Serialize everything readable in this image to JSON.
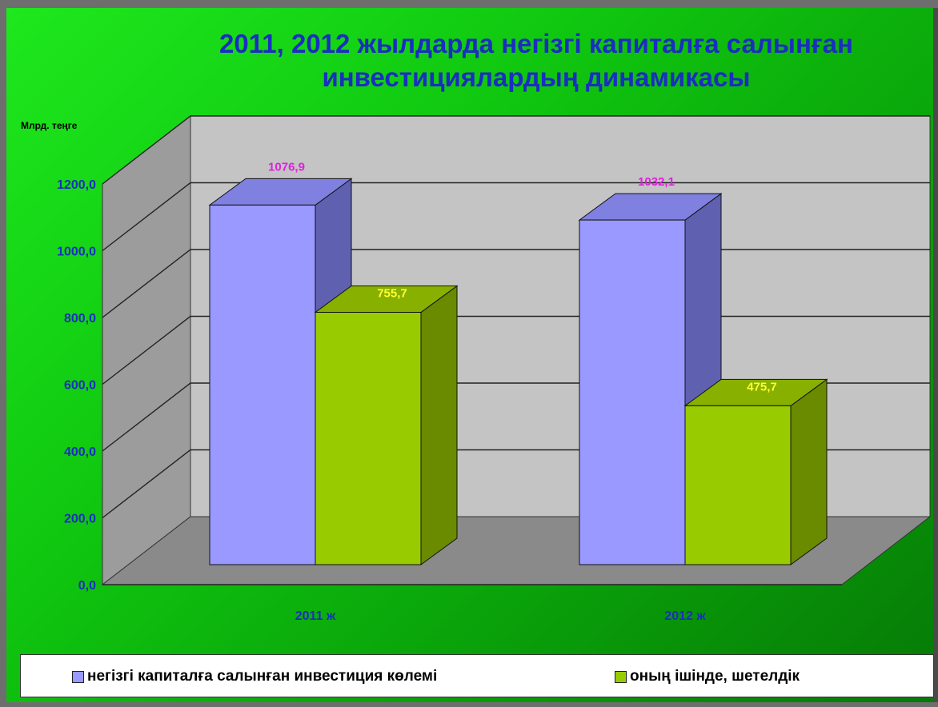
{
  "chart_data": {
    "type": "bar",
    "title": "2011, 2012 жылдарда негізгі капиталға салынған\nинвестициялардың динамикасы",
    "ylabel": "Млрд. теңге",
    "categories": [
      "2011 ж",
      "2012 ж"
    ],
    "series": [
      {
        "name": "негізгі капиталға салынған инвестиция көлемі",
        "values": [
          1076.9,
          1032.1
        ],
        "labels": [
          "1076,9",
          "1032,1"
        ],
        "color": "#9999ff",
        "label_color": "#e020e0"
      },
      {
        "name": "оның ішінде, шетелдік",
        "values": [
          755.7,
          475.7
        ],
        "labels": [
          "755,7",
          "475,7"
        ],
        "color": "#99cc00",
        "label_color": "#ffff33"
      }
    ],
    "ylim": [
      0,
      1200
    ],
    "yticks": [
      "0,0",
      "200,0",
      "400,0",
      "600,0",
      "800,0",
      "1000,0",
      "1200,0"
    ],
    "grid": true,
    "legend": "bottom"
  }
}
